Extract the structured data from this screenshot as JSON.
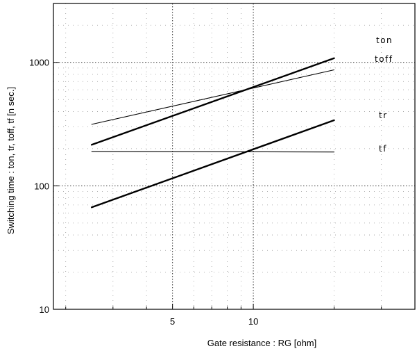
{
  "chart_data": {
    "type": "line",
    "xlabel": "Gate resistance : RG [ohm]",
    "ylabel": "Switching time : ton, tr, toff, tf [n sec.]",
    "x_scale": "log",
    "y_scale": "log",
    "xlim": [
      1.8,
      40
    ],
    "ylim": [
      10,
      3000
    ],
    "x_ticks": [
      {
        "value": 5,
        "label": "5"
      },
      {
        "value": 10,
        "label": "10"
      }
    ],
    "y_ticks": [
      {
        "value": 10,
        "label": "10"
      },
      {
        "value": 100,
        "label": "100"
      },
      {
        "value": 1000,
        "label": "1000"
      }
    ],
    "grid": true,
    "series": [
      {
        "name": "ton",
        "x": [
          2.5,
          20
        ],
        "y": [
          215,
          1080
        ],
        "weight": "heavy"
      },
      {
        "name": "toff",
        "x": [
          2.5,
          20
        ],
        "y": [
          315,
          870
        ],
        "weight": "light"
      },
      {
        "name": "tr",
        "x": [
          2.5,
          20
        ],
        "y": [
          67,
          340
        ],
        "weight": "heavy"
      },
      {
        "name": "tf",
        "x": [
          2.5,
          20
        ],
        "y": [
          190,
          188
        ],
        "weight": "light"
      }
    ]
  }
}
